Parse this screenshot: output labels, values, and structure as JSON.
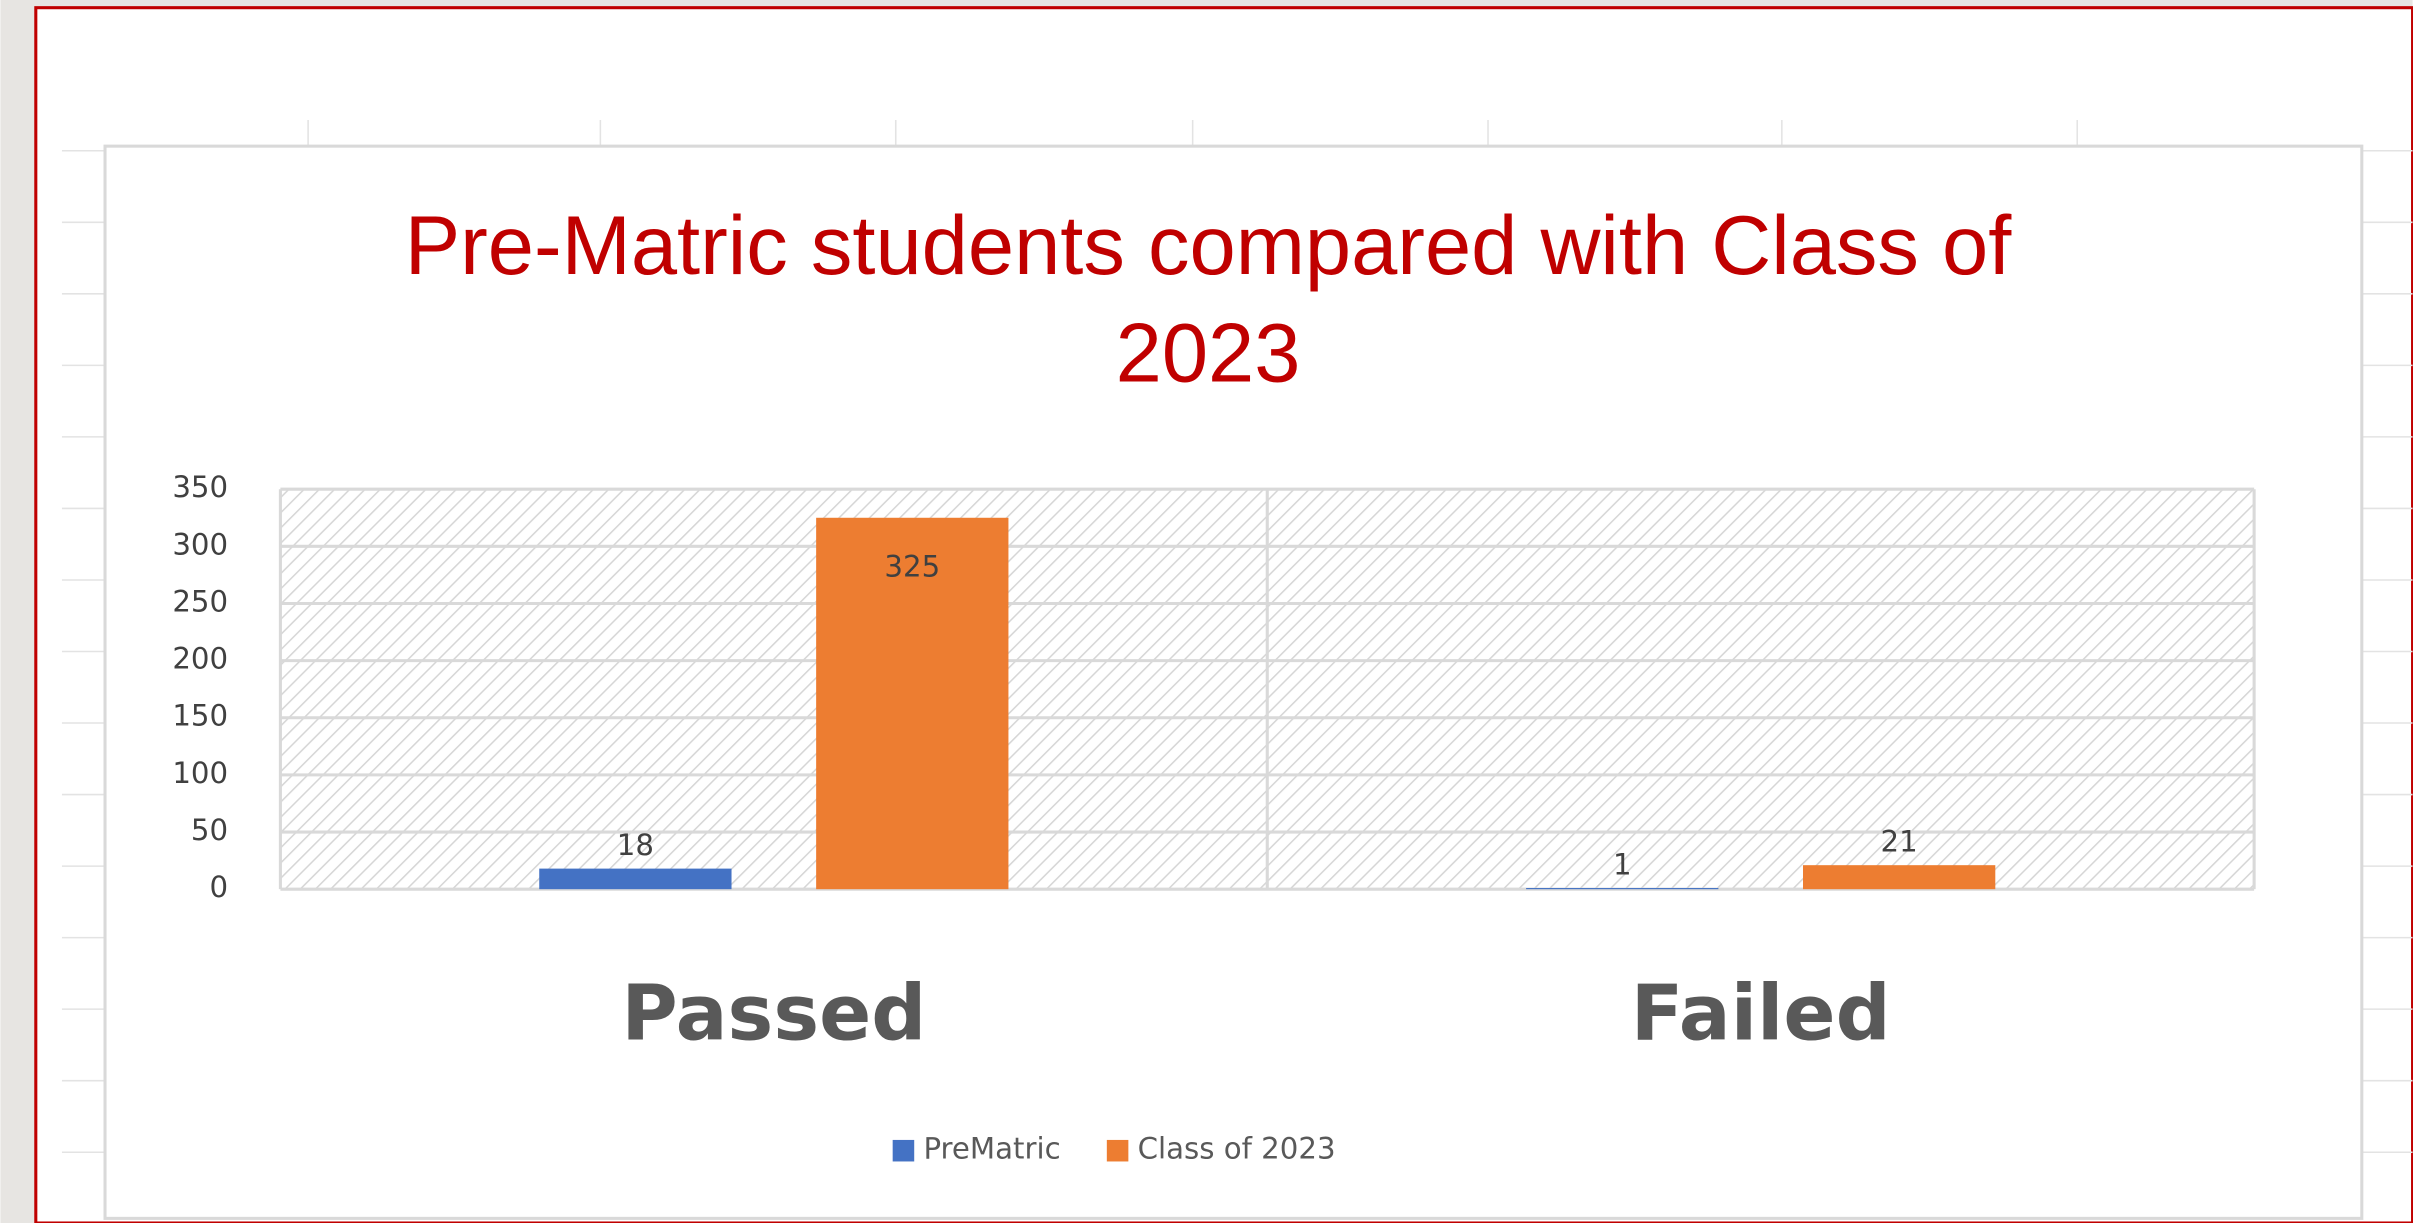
{
  "chart_data": {
    "type": "bar",
    "title": "Pre-Matric students compared with Class of 2023",
    "categories": [
      "Passed",
      "Failed"
    ],
    "series": [
      {
        "name": "PreMatric",
        "color": "#4472c4",
        "values": [
          18,
          1
        ]
      },
      {
        "name": "Class of 2023",
        "color": "#ed7d31",
        "values": [
          325,
          21
        ]
      }
    ],
    "ylim": [
      0,
      350
    ],
    "yticks": [
      0,
      50,
      100,
      150,
      200,
      250,
      300,
      350
    ],
    "grid": true,
    "legend": "bottom"
  }
}
